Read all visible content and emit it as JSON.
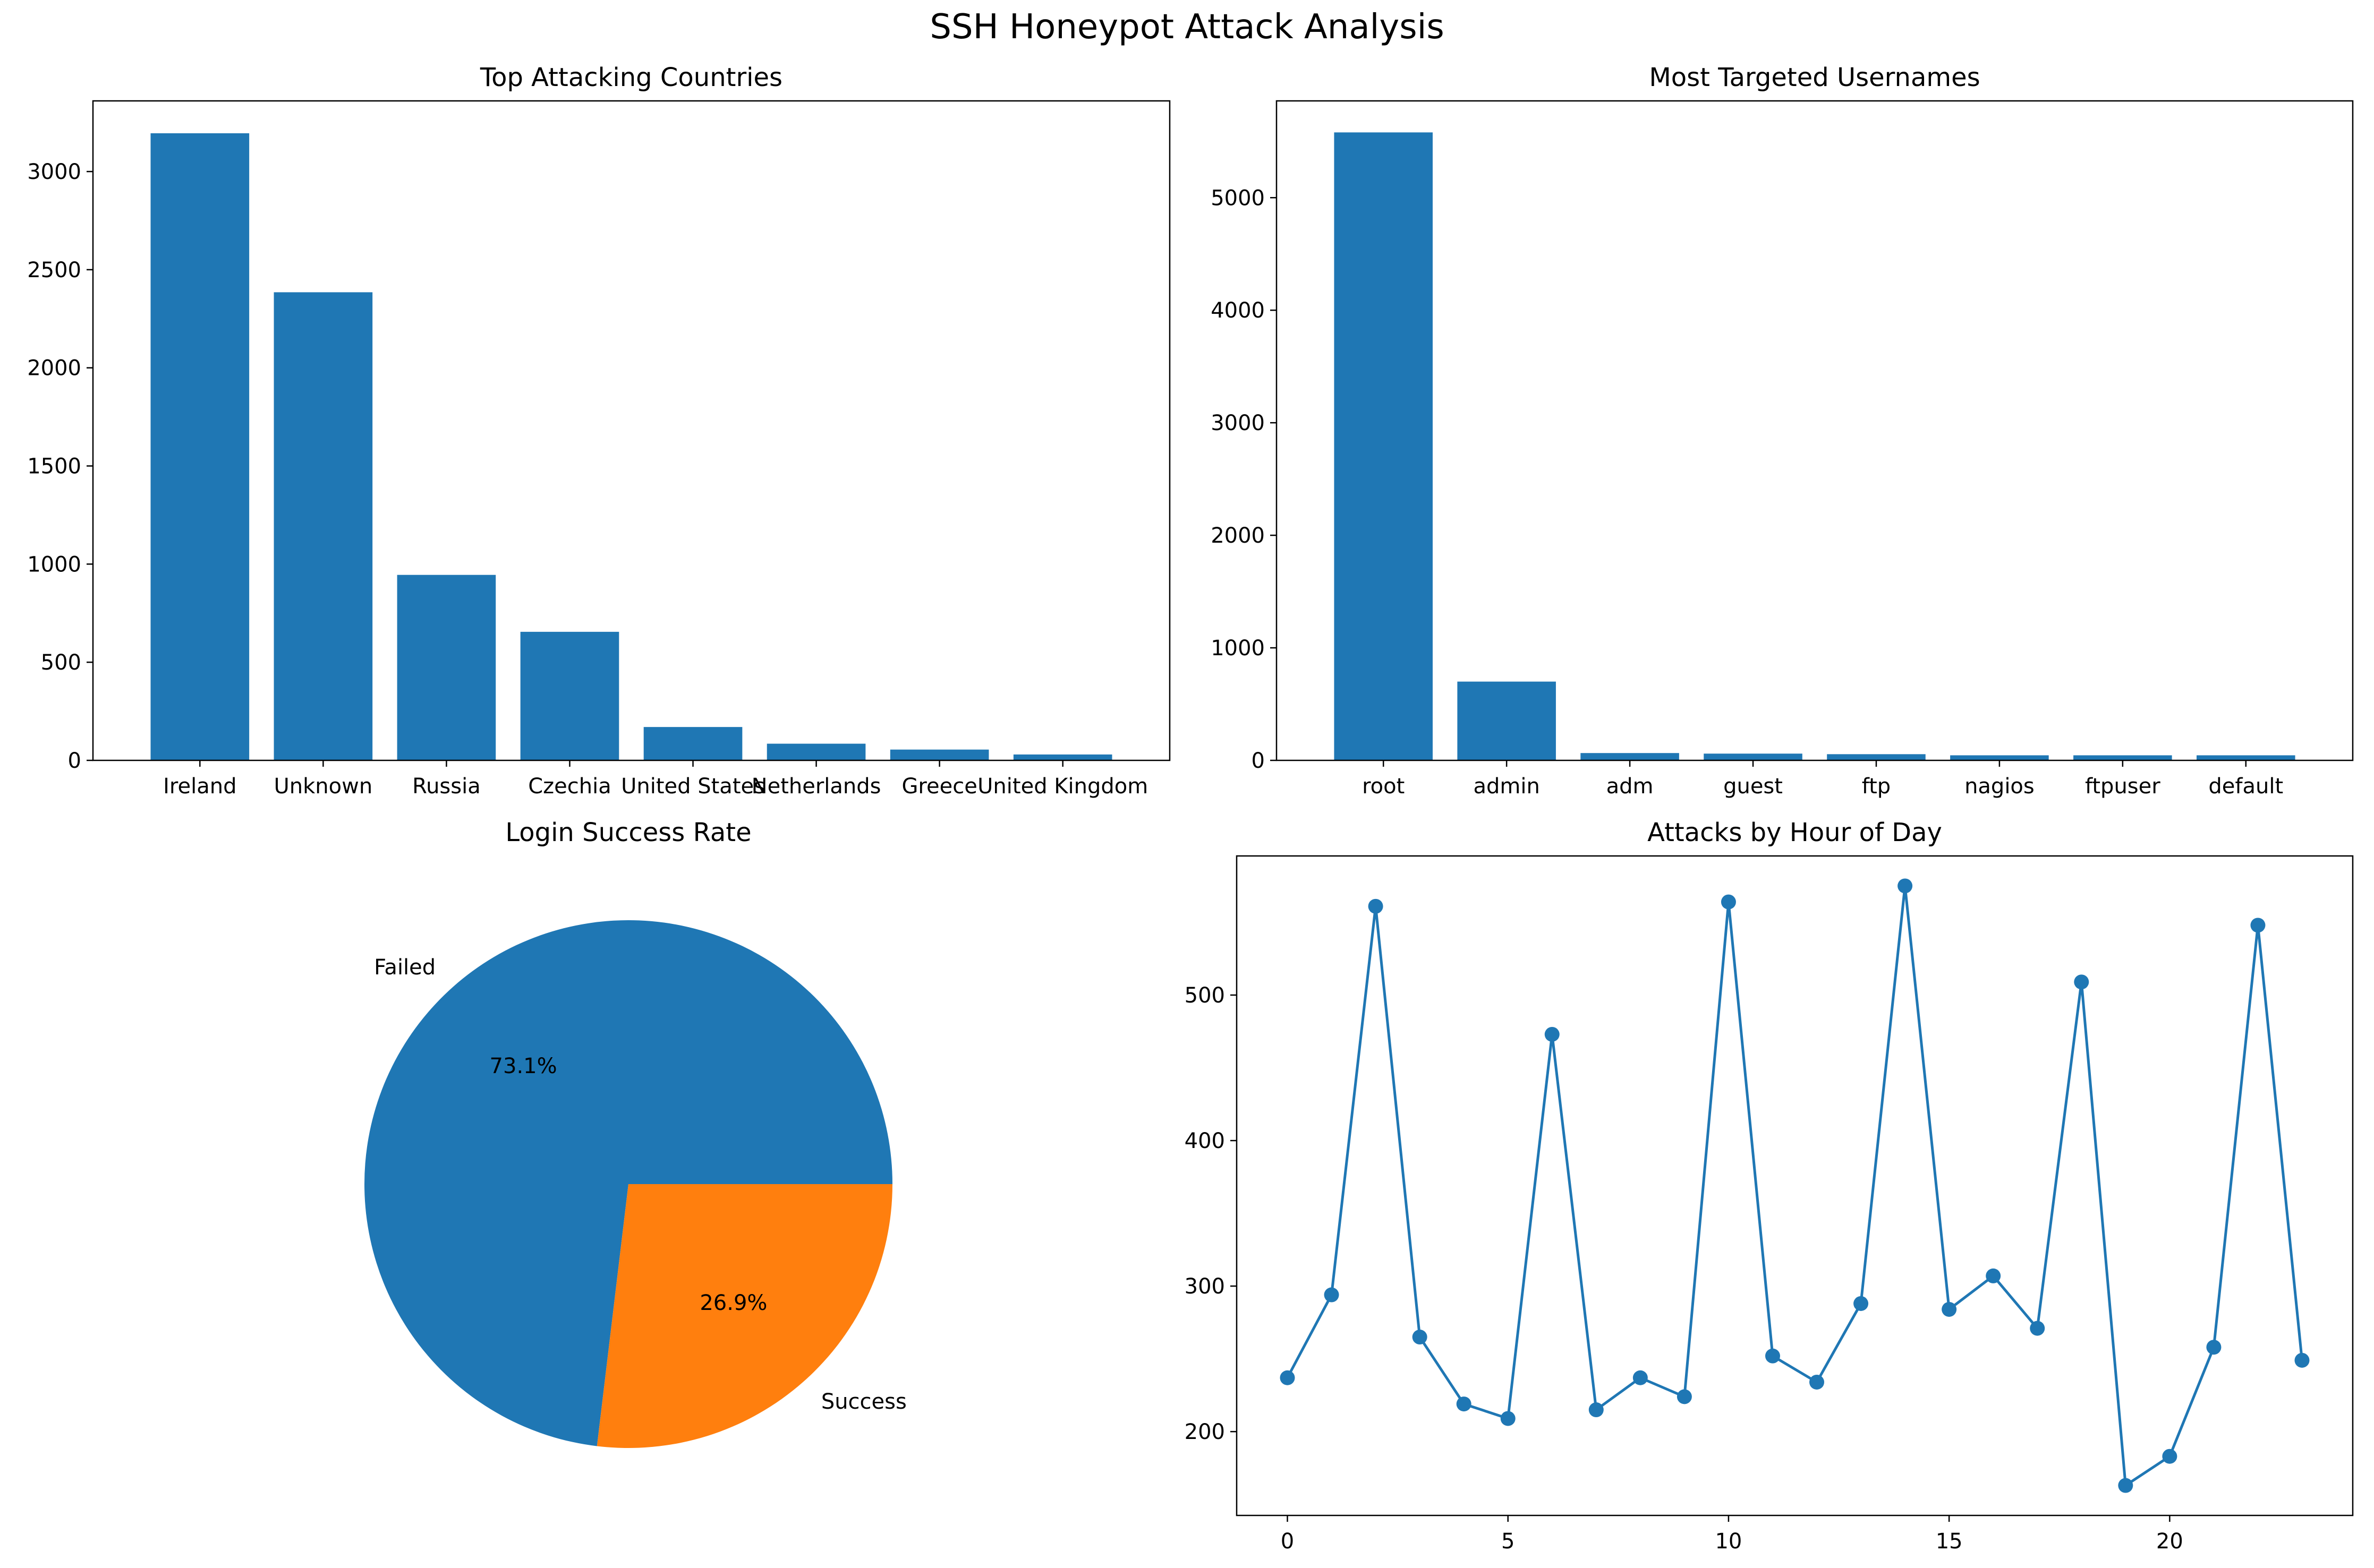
{
  "figure": {
    "suptitle": "SSH Honeypot Attack Analysis",
    "colors": {
      "blue": "#1f77b4",
      "orange": "#ff7f0e"
    }
  },
  "chart_data": [
    {
      "type": "bar",
      "title": "Top Attacking Countries",
      "categories": [
        "Ireland",
        "Unknown",
        "Russia",
        "Czechia",
        "United States",
        "Netherlands",
        "Greece",
        "United Kingdom"
      ],
      "values": [
        3195,
        2385,
        945,
        655,
        170,
        85,
        55,
        30
      ],
      "ylim": [
        0,
        3360
      ],
      "yticks": [
        0,
        500,
        1000,
        1500,
        2000,
        2500,
        3000
      ],
      "color": "#1f77b4"
    },
    {
      "type": "bar",
      "title": "Most Targeted Usernames",
      "categories": [
        "root",
        "admin",
        "adm",
        "guest",
        "ftp",
        "nagios",
        "ftpuser",
        "default"
      ],
      "values": [
        5580,
        700,
        65,
        60,
        55,
        45,
        45,
        45
      ],
      "ylim": [
        0,
        5860
      ],
      "yticks": [
        0,
        1000,
        2000,
        3000,
        4000,
        5000
      ],
      "color": "#1f77b4"
    },
    {
      "type": "pie",
      "title": "Login Success Rate",
      "labels": [
        "Failed",
        "Success"
      ],
      "values": [
        73.1,
        26.9
      ],
      "autopct": [
        "73.1%",
        "26.9%"
      ],
      "colors": [
        "#1f77b4",
        "#ff7f0e"
      ]
    },
    {
      "type": "line",
      "title": "Attacks by Hour of Day",
      "x": [
        0,
        1,
        2,
        3,
        4,
        5,
        6,
        7,
        8,
        9,
        10,
        11,
        12,
        13,
        14,
        15,
        16,
        17,
        18,
        19,
        20,
        21,
        22,
        23
      ],
      "y": [
        237,
        294,
        561,
        265,
        219,
        209,
        473,
        215,
        237,
        224,
        564,
        252,
        234,
        288,
        575,
        284,
        307,
        271,
        509,
        163,
        183,
        258,
        548,
        249
      ],
      "xlim": [
        -1.15,
        24.15
      ],
      "ylim": [
        142.4,
        595.6
      ],
      "xticks": [
        0,
        5,
        10,
        15,
        20
      ],
      "yticks": [
        200,
        300,
        400,
        500
      ],
      "color": "#1f77b4"
    }
  ]
}
